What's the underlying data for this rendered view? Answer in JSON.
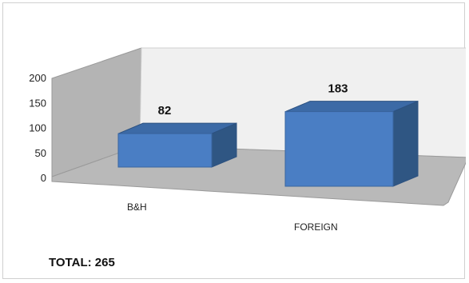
{
  "chart_data": {
    "type": "bar",
    "style": "3d-column",
    "categories": [
      "B&H",
      "FOREIGN"
    ],
    "values": [
      82,
      183
    ],
    "data_labels": [
      "82",
      "183"
    ],
    "ylim": [
      0,
      200
    ],
    "yticks": [
      "0",
      "50",
      "100",
      "150",
      "200"
    ],
    "grid": false,
    "legend": "none",
    "annotation": "TOTAL: 265",
    "colors": {
      "bar_front": "#4a7ec4",
      "bar_top": "#3c6aa6",
      "bar_side": "#2f5683",
      "back_wall": "#f0f0f0",
      "side_wall": "#b4b4b4",
      "floor": "#b9b9b9"
    }
  }
}
